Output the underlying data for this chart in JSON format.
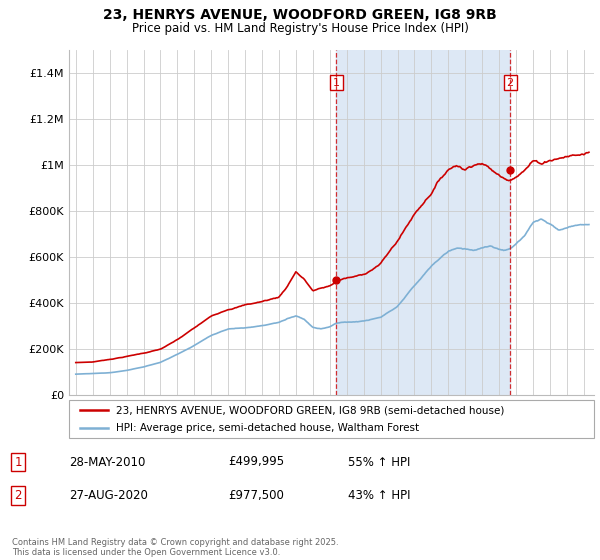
{
  "title_line1": "23, HENRYS AVENUE, WOODFORD GREEN, IG8 9RB",
  "title_line2": "Price paid vs. HM Land Registry's House Price Index (HPI)",
  "legend_line1": "23, HENRYS AVENUE, WOODFORD GREEN, IG8 9RB (semi-detached house)",
  "legend_line2": "HPI: Average price, semi-detached house, Waltham Forest",
  "sale1_date": "28-MAY-2010",
  "sale1_price": "£499,995",
  "sale1_hpi": "55% ↑ HPI",
  "sale2_date": "27-AUG-2020",
  "sale2_price": "£977,500",
  "sale2_hpi": "43% ↑ HPI",
  "footnote": "Contains HM Land Registry data © Crown copyright and database right 2025.\nThis data is licensed under the Open Government Licence v3.0.",
  "red_color": "#cc0000",
  "blue_color": "#7eb0d4",
  "shade_color": "#dde8f5",
  "ylim": [
    0,
    1500000
  ],
  "yticks": [
    0,
    200000,
    400000,
    600000,
    800000,
    1000000,
    1200000,
    1400000
  ],
  "sale1_x": 2010.38,
  "sale1_y": 499995,
  "sale2_x": 2020.65,
  "sale2_y": 977500,
  "xmin": 1995,
  "xmax": 2025
}
